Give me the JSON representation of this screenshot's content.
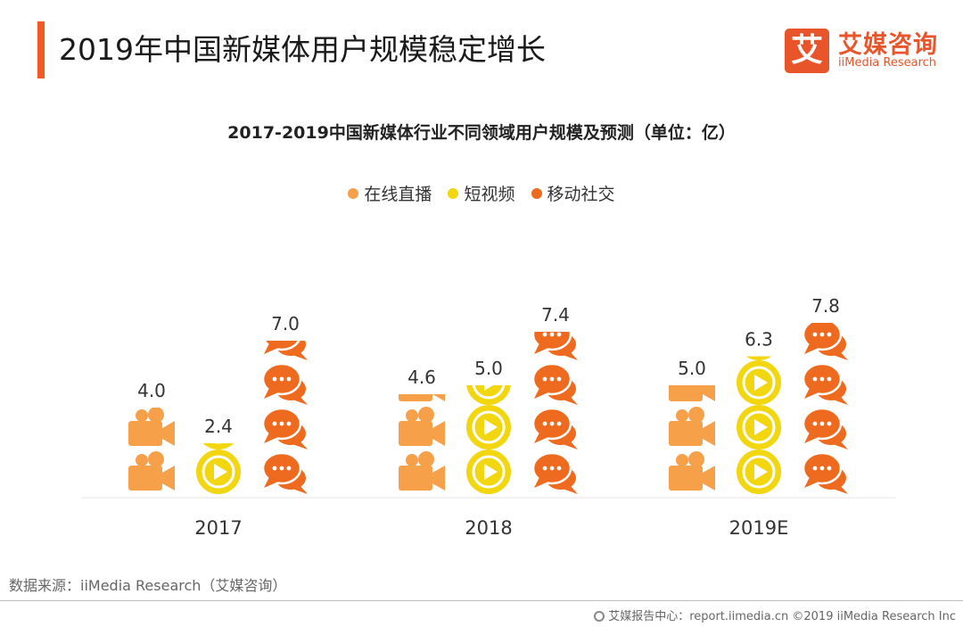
{
  "page_title": "2019年中国新媒体用户规模稳定增长",
  "logo": {
    "cn": "艾媒咨询",
    "en": "iiMedia Research",
    "mark": "艾"
  },
  "source": "数据来源：iiMedia Research（艾媒咨询）",
  "footer": "艾媒报告中心：report.iimedia.cn ©2019 iiMedia Research Inc",
  "colors": {
    "accent": "#f15a22",
    "live": "#f7a04a",
    "video": "#f2d60f",
    "social": "#ee6a1f"
  },
  "chart_data": {
    "type": "bar",
    "title": "2017-2019中国新媒体行业不同领域用户规模及预测（单位：亿）",
    "categories": [
      "2017",
      "2018",
      "2019E"
    ],
    "series": [
      {
        "name": "在线直播",
        "icon": "camera-icon",
        "color": "#f7a04a",
        "values": [
          4.0,
          4.6,
          5.0
        ],
        "labels": [
          "4.0",
          "4.6",
          "5.0"
        ]
      },
      {
        "name": "短视频",
        "icon": "play-icon",
        "color": "#f2d60f",
        "values": [
          2.4,
          5.0,
          6.3
        ],
        "labels": [
          "2.4",
          "5.0",
          "6.3"
        ]
      },
      {
        "name": "移动社交",
        "icon": "chat-icon",
        "color": "#ee6a1f",
        "values": [
          7.0,
          7.4,
          7.8
        ],
        "labels": [
          "7.0",
          "7.4",
          "7.8"
        ]
      }
    ]
  }
}
